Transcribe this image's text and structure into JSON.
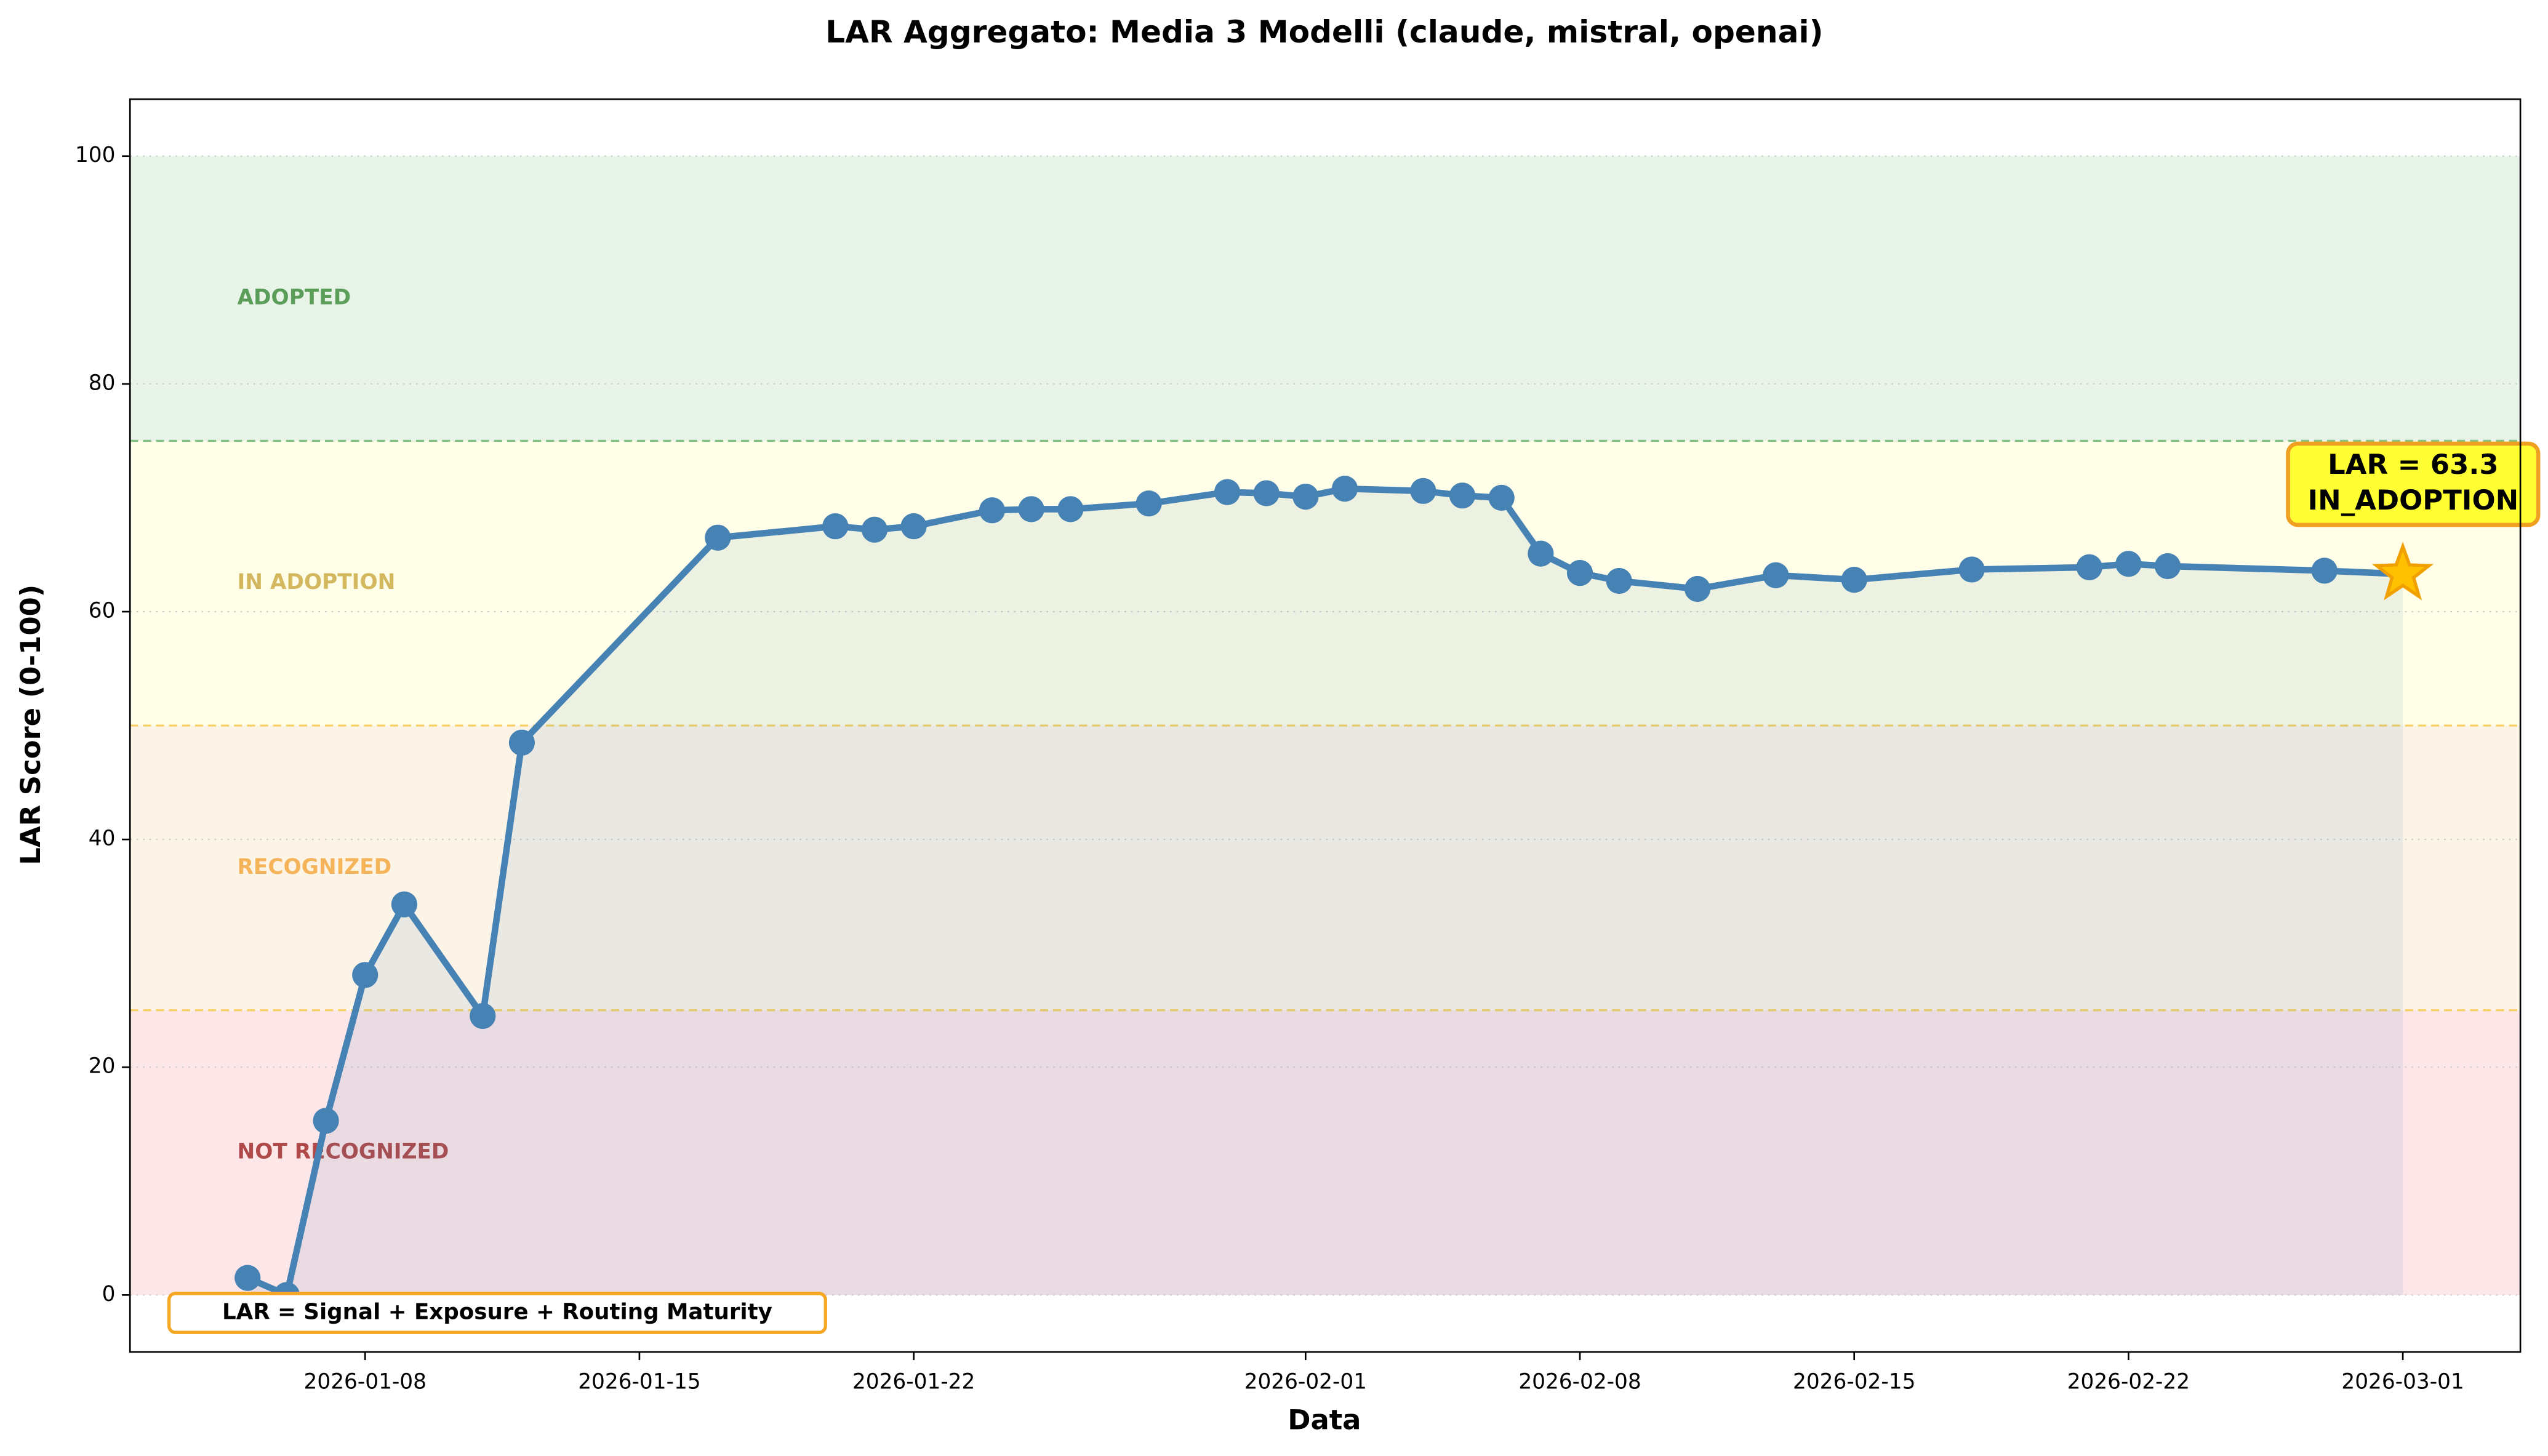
{
  "chart_data": {
    "type": "line",
    "title": "LAR Aggregato: Media 3 Modelli (claude, mistral, openai)",
    "x_label": "Data",
    "y_label": "LAR Score (0-100)",
    "x": [
      "2026-01-05",
      "2026-01-06",
      "2026-01-07",
      "2026-01-08",
      "2026-01-09",
      "2026-01-11",
      "2026-01-12",
      "2026-01-17",
      "2026-01-20",
      "2026-01-21",
      "2026-01-22",
      "2026-01-24",
      "2026-01-25",
      "2026-01-26",
      "2026-01-28",
      "2026-01-30",
      "2026-01-31",
      "2026-02-01",
      "2026-02-02",
      "2026-02-04",
      "2026-02-05",
      "2026-02-06",
      "2026-02-07",
      "2026-02-08",
      "2026-02-09",
      "2026-02-11",
      "2026-02-13",
      "2026-02-15",
      "2026-02-18",
      "2026-02-21",
      "2026-02-22",
      "2026-02-23",
      "2026-02-27",
      "2026-03-01"
    ],
    "series": [
      {
        "color": "#4682b4",
        "values": [
          1.5,
          0,
          15.3,
          28.1,
          34.3,
          24.5,
          48.5,
          66.5,
          67.5,
          67.2,
          67.5,
          68.9,
          69.0,
          69.0,
          69.5,
          70.5,
          70.4,
          70.1,
          70.8,
          70.6,
          70.2,
          70.0,
          65.1,
          63.4,
          62.7,
          62.0,
          63.2,
          62.8,
          63.7,
          63.9,
          64.2,
          64.0,
          63.6,
          63.3
        ]
      }
    ],
    "xlim": [
      "2026-01-02",
      "2026-03-04"
    ],
    "xticks": [
      "2026-01-08",
      "2026-01-15",
      "2026-01-22",
      "2026-02-01",
      "2026-02-08",
      "2026-02-15",
      "2026-02-22",
      "2026-03-01"
    ],
    "ylim": [
      -5,
      105
    ],
    "yticks": [
      0,
      20,
      40,
      60,
      80,
      100
    ],
    "grid": true,
    "zones": [
      {
        "label": "NOT RECOGNIZED",
        "from": 0,
        "to": 25,
        "color": "#fde6e8",
        "text_color": "#b04a4a"
      },
      {
        "label": "RECOGNIZED",
        "from": 25,
        "to": 50,
        "color": "#fdf4e8",
        "text_color": "#f5b35a"
      },
      {
        "label": "IN ADOPTION",
        "from": 50,
        "to": 75,
        "color": "#fffee8",
        "text_color": "#d4b860"
      },
      {
        "label": "ADOPTED",
        "from": 75,
        "to": 100,
        "color": "#e9f4e9",
        "text_color": "#5a9e5a"
      }
    ],
    "annotation": [
      "LAR = 63.3",
      "IN_ADOPTION"
    ],
    "note": "LAR = Signal + Exposure + Routing Maturity"
  }
}
